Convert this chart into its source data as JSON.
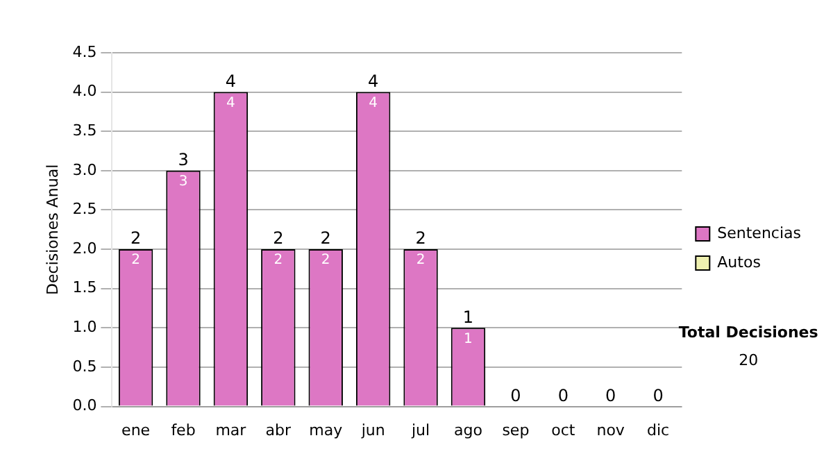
{
  "chart_data": {
    "type": "bar",
    "ylabel": "Decisiones Anual",
    "categories": [
      "ene",
      "feb",
      "mar",
      "abr",
      "may",
      "jun",
      "jul",
      "ago",
      "sep",
      "oct",
      "nov",
      "dic"
    ],
    "series": [
      {
        "name": "Sentencias",
        "color": "#dd77c4",
        "values": [
          2,
          3,
          4,
          2,
          2,
          4,
          2,
          1,
          0,
          0,
          0,
          0
        ],
        "value_labels": [
          "2",
          "3",
          "4",
          "2",
          "2",
          "4",
          "2",
          "1",
          null,
          null,
          null,
          null
        ]
      },
      {
        "name": "Autos",
        "color": "#eef0b0",
        "values": [
          0,
          0,
          0,
          0,
          0,
          0,
          0,
          0,
          0,
          0,
          0,
          0
        ]
      }
    ],
    "stacked": true,
    "totals": [
      "2",
      "3",
      "4",
      "2",
      "2",
      "4",
      "2",
      "1",
      "0",
      "0",
      "0",
      "0"
    ],
    "ylim": [
      0,
      4.5
    ],
    "yticks": [
      {
        "value": 0,
        "label": "0.0"
      },
      {
        "value": 0.5,
        "label": "0.5"
      },
      {
        "value": 1,
        "label": "1.0"
      },
      {
        "value": 1.5,
        "label": "1.5"
      },
      {
        "value": 2,
        "label": "2.0"
      },
      {
        "value": 2.5,
        "label": "2.5"
      },
      {
        "value": 3,
        "label": "3.0"
      },
      {
        "value": 3.5,
        "label": "3.5"
      },
      {
        "value": 4,
        "label": "4.0"
      },
      {
        "value": 4.5,
        "label": "4.5"
      }
    ],
    "grid": "y",
    "legend": "right",
    "annotations": [
      "Total Decisiones",
      "20"
    ]
  }
}
